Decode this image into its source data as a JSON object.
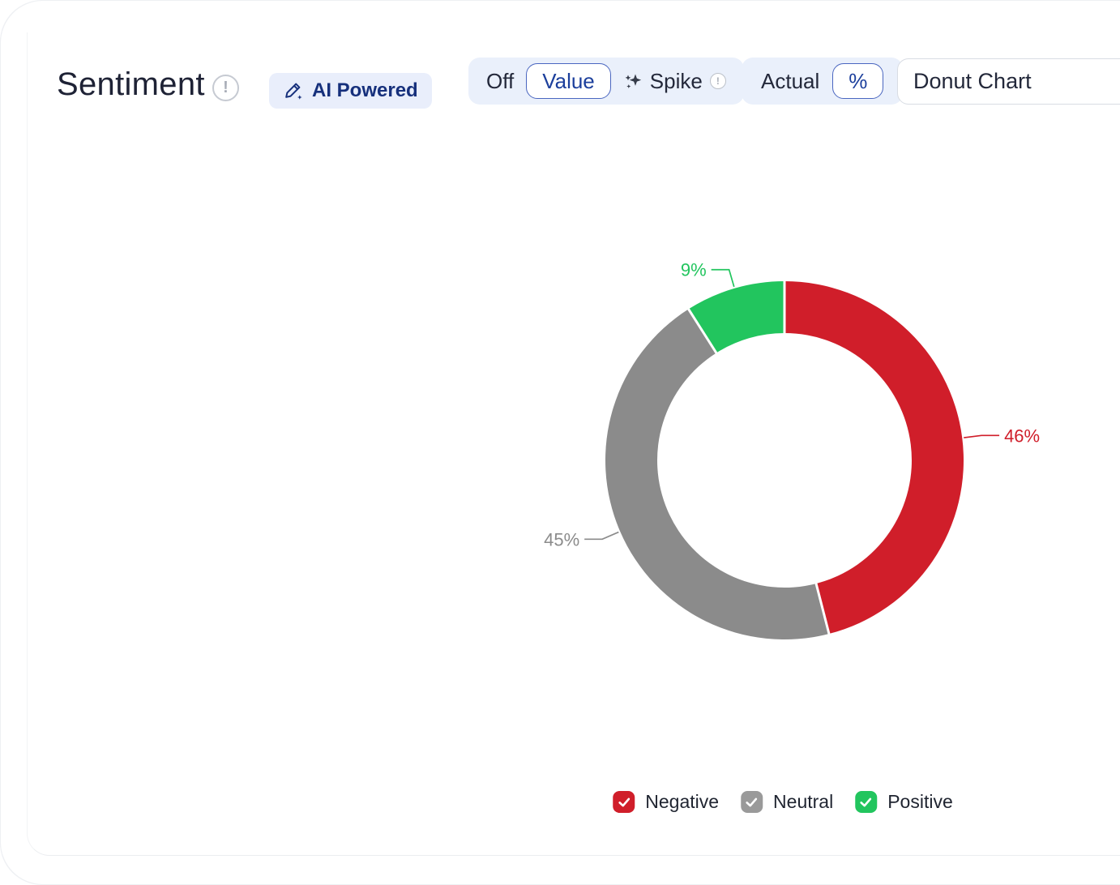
{
  "header": {
    "title": "Sentiment",
    "ai_badge_label": "AI Powered"
  },
  "controls": {
    "mode_toggle": {
      "options": [
        "Off",
        "Value",
        "Spike"
      ],
      "selected": "Value"
    },
    "unit_toggle": {
      "options": [
        "Actual",
        "%"
      ],
      "selected": "%"
    },
    "chart_type_dropdown": {
      "value": "Donut Chart"
    }
  },
  "chart_data": {
    "type": "pie",
    "variant": "donut",
    "title": "Sentiment",
    "direction": "clockwise",
    "start_angle_deg": 0,
    "labels_position": "outside-with-leader-lines",
    "legend_position": "bottom",
    "series": [
      {
        "name": "Negative",
        "value": 46,
        "label": "46%",
        "color": "#d01e2a"
      },
      {
        "name": "Neutral",
        "value": 45,
        "label": "45%",
        "color": "#8b8b8b"
      },
      {
        "name": "Positive",
        "value": 9,
        "label": "9%",
        "color": "#22c55e"
      }
    ]
  },
  "legend": {
    "items": [
      {
        "label": "Negative",
        "color": "#d01e2a",
        "checked": true
      },
      {
        "label": "Neutral",
        "color": "#9a9a9a",
        "checked": true
      },
      {
        "label": "Positive",
        "color": "#22c55e",
        "checked": true
      }
    ]
  }
}
